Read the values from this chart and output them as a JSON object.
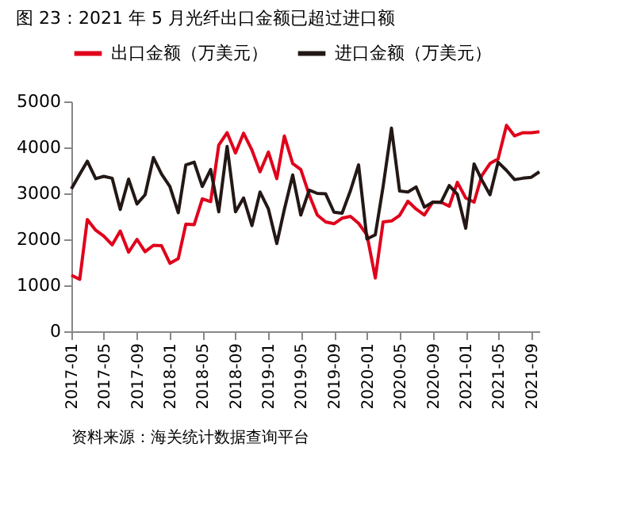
{
  "chart_data": {
    "type": "line",
    "title": "图 23：2021 年 5 月光纤出口金额已超过进口额",
    "annotations": [
      "资料来源：海关统计数据查询平台"
    ],
    "x": [
      "2017-01",
      "2017-02",
      "2017-03",
      "2017-04",
      "2017-05",
      "2017-06",
      "2017-07",
      "2017-08",
      "2017-09",
      "2017-10",
      "2017-11",
      "2017-12",
      "2018-01",
      "2018-02",
      "2018-03",
      "2018-04",
      "2018-05",
      "2018-06",
      "2018-07",
      "2018-08",
      "2018-09",
      "2018-10",
      "2018-11",
      "2018-12",
      "2019-01",
      "2019-02",
      "2019-03",
      "2019-04",
      "2019-05",
      "2019-06",
      "2019-07",
      "2019-08",
      "2019-09",
      "2019-10",
      "2019-11",
      "2019-12",
      "2020-01",
      "2020-02",
      "2020-03",
      "2020-04",
      "2020-05",
      "2020-06",
      "2020-07",
      "2020-08",
      "2020-09",
      "2020-10",
      "2020-11",
      "2020-12",
      "2021-01",
      "2021-02",
      "2021-03",
      "2021-04",
      "2021-05",
      "2021-06",
      "2021-07",
      "2021-08",
      "2021-09",
      "2021-10"
    ],
    "series": [
      {
        "name": "出口金额（万美元）",
        "color": "#e0001b",
        "values": [
          1220,
          1130,
          2430,
          2200,
          2070,
          1880,
          2180,
          1720,
          2000,
          1730,
          1870,
          1860,
          1480,
          1580,
          2330,
          2320,
          2880,
          2820,
          4050,
          4320,
          3880,
          4310,
          3940,
          3470,
          3900,
          3320,
          4250,
          3650,
          3520,
          2970,
          2530,
          2380,
          2340,
          2460,
          2500,
          2350,
          2100,
          1160,
          2380,
          2400,
          2520,
          2830,
          2660,
          2530,
          2810,
          2810,
          2720,
          3240,
          2900,
          2810,
          3380,
          3650,
          3750,
          4480,
          4250,
          4320,
          4320,
          4340
        ]
      },
      {
        "name": "进口金额（万美元）",
        "color": "#231815",
        "values": [
          3100,
          3420,
          3700,
          3320,
          3370,
          3330,
          2650,
          3310,
          2770,
          2970,
          3780,
          3420,
          3150,
          2580,
          3620,
          3680,
          3150,
          3520,
          2600,
          4020,
          2600,
          2900,
          2300,
          3030,
          2660,
          1910,
          2650,
          3400,
          2530,
          3070,
          3000,
          2990,
          2590,
          2570,
          3060,
          3620,
          2010,
          2100,
          3150,
          4420,
          3050,
          3030,
          3140,
          2700,
          2810,
          2800,
          3170,
          2980,
          2240,
          3640,
          3300,
          2970,
          3680,
          3500,
          3300,
          3330,
          3350,
          3470
        ]
      }
    ],
    "xlim": [
      "2017-01",
      "2021-10"
    ],
    "xticks": [
      "2017-01",
      "2017-05",
      "2017-09",
      "2018-01",
      "2018-05",
      "2018-09",
      "2019-01",
      "2019-05",
      "2019-09",
      "2020-01",
      "2020-05",
      "2020-09",
      "2021-01",
      "2021-05",
      "2021-09"
    ],
    "ylim": [
      0,
      5000
    ],
    "yticks": [
      0,
      1000,
      2000,
      3000,
      4000,
      5000
    ],
    "grid": false,
    "legend": "top",
    "marker": "none",
    "line_style": "solid"
  }
}
